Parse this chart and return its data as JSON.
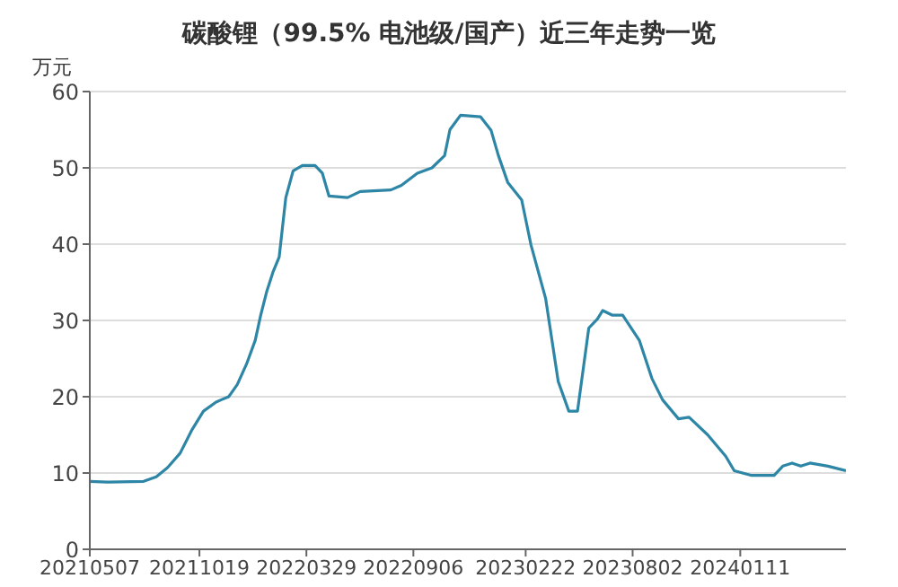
{
  "chart_data": {
    "type": "line",
    "title": "碳酸锂（99.5% 电池级/国产）近三年走势一览",
    "ylabel": "万元",
    "x": [
      "2021-05-07",
      "2021-06-03",
      "2021-07-27",
      "2021-08-15",
      "2021-09-01",
      "2021-09-20",
      "2021-10-08",
      "2021-10-25",
      "2021-11-13",
      "2021-11-21",
      "2021-12-02",
      "2021-12-15",
      "2021-12-29",
      "2022-01-11",
      "2022-01-19",
      "2022-01-28",
      "2022-02-07",
      "2022-02-16",
      "2022-02-26",
      "2022-03-09",
      "2022-03-23",
      "2022-04-11",
      "2022-04-22",
      "2022-05-02",
      "2022-05-30",
      "2022-06-18",
      "2022-08-03",
      "2022-08-19",
      "2022-09-12",
      "2022-10-04",
      "2022-10-23",
      "2022-10-31",
      "2022-11-16",
      "2022-12-16",
      "2023-01-01",
      "2023-01-12",
      "2023-01-26",
      "2023-02-16",
      "2023-03-02",
      "2023-03-24",
      "2023-04-12",
      "2023-04-28",
      "2023-05-11",
      "2023-05-28",
      "2023-06-10",
      "2023-06-18",
      "2023-07-02",
      "2023-07-18",
      "2023-08-12",
      "2023-08-31",
      "2023-09-16",
      "2023-10-10",
      "2023-10-26",
      "2023-11-23",
      "2023-12-20",
      "2024-01-02",
      "2024-01-27",
      "2024-03-02",
      "2024-03-15",
      "2024-03-29",
      "2024-04-11",
      "2024-04-25",
      "2024-05-22",
      "2024-06-18"
    ],
    "series": [
      {
        "color": "#2e86a6",
        "values": [
          8.9,
          8.8,
          8.9,
          9.5,
          10.7,
          12.6,
          15.7,
          18.1,
          19.3,
          19.6,
          20.0,
          21.6,
          24.3,
          27.4,
          30.6,
          33.7,
          36.4,
          38.3,
          46.1,
          49.6,
          50.3,
          50.3,
          49.3,
          46.3,
          46.1,
          46.9,
          47.1,
          47.7,
          49.3,
          50.0,
          51.6,
          55.0,
          56.9,
          56.7,
          54.9,
          51.6,
          48.1,
          45.8,
          39.9,
          32.9,
          22.0,
          18.1,
          18.1,
          29.0,
          30.2,
          31.3,
          30.7,
          30.7,
          27.4,
          22.4,
          19.6,
          17.1,
          17.3,
          15.0,
          12.2,
          10.3,
          9.7,
          9.7,
          10.9,
          11.3,
          10.9,
          11.3,
          10.9,
          10.3
        ]
      }
    ],
    "xlim": [
      "2021-05-07",
      "2024-06-18"
    ],
    "xticks": [
      {
        "value": "2021-05-07",
        "label": "20210507"
      },
      {
        "value": "2021-10-19",
        "label": "20211019"
      },
      {
        "value": "2022-03-29",
        "label": "20220329"
      },
      {
        "value": "2022-09-06",
        "label": "20220906"
      },
      {
        "value": "2023-02-22",
        "label": "20230222"
      },
      {
        "value": "2023-08-02",
        "label": "20230802"
      },
      {
        "value": "2024-01-11",
        "label": "20240111"
      }
    ],
    "ylim": [
      0,
      60
    ],
    "yticks": [
      0,
      10,
      20,
      30,
      40,
      50,
      60
    ],
    "grid": "y",
    "marker": "none",
    "line_style": "solid"
  }
}
